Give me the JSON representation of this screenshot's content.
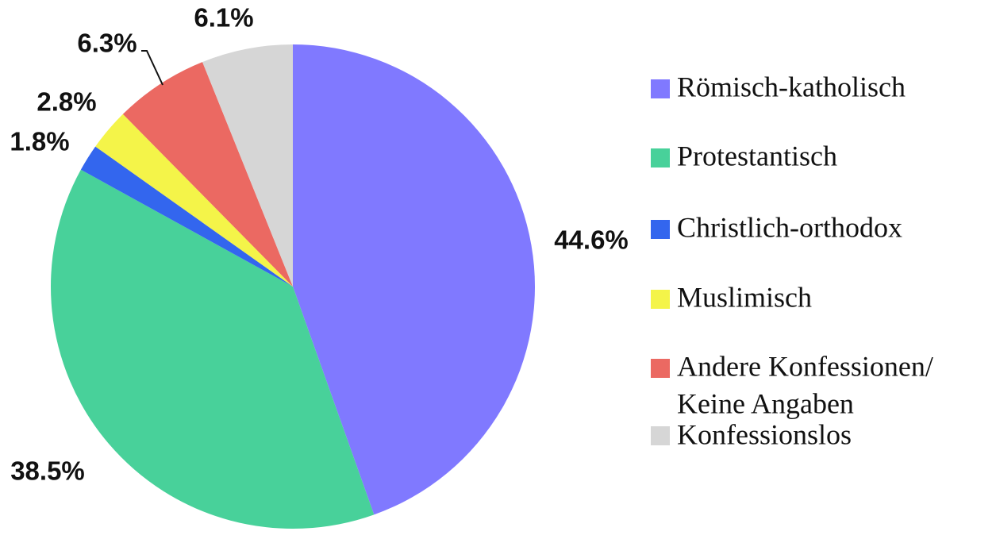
{
  "chart_data": {
    "type": "pie",
    "title": "",
    "start_angle_deg": 0,
    "direction": "clockwise",
    "legend_position": "right",
    "series": [
      {
        "name": "Römisch-katholisch",
        "value": 44.6,
        "label": "44.6%",
        "color": "#8079FF"
      },
      {
        "name": "Protestantisch",
        "value": 38.5,
        "label": "38.5%",
        "color": "#48D19A"
      },
      {
        "name": "Christlich-orthodox",
        "value": 1.8,
        "label": "1.8%",
        "color": "#3366EE"
      },
      {
        "name": "Muslimisch",
        "value": 2.8,
        "label": "2.8%",
        "color": "#F4F449"
      },
      {
        "name": "Andere Konfessionen/ Keine Angaben",
        "value": 6.3,
        "label": "6.3%",
        "color": "#EB6962"
      },
      {
        "name": "Konfessionslos",
        "value": 6.1,
        "label": "6.1%",
        "color": "#D6D6D6"
      }
    ],
    "legend": [
      {
        "lines": [
          "Römisch-katholisch"
        ],
        "color": "#8079FF"
      },
      {
        "lines": [
          "Protestantisch"
        ],
        "color": "#48D19A"
      },
      {
        "lines": [
          "Christlich-orthodox"
        ],
        "color": "#3366EE"
      },
      {
        "lines": [
          "Muslimisch"
        ],
        "color": "#F4F449"
      },
      {
        "lines": [
          "Andere Konfessionen/",
          "Keine Angaben"
        ],
        "color": "#EB6962"
      },
      {
        "lines": [
          "Konfessionslos"
        ],
        "color": "#D6D6D6"
      }
    ]
  }
}
